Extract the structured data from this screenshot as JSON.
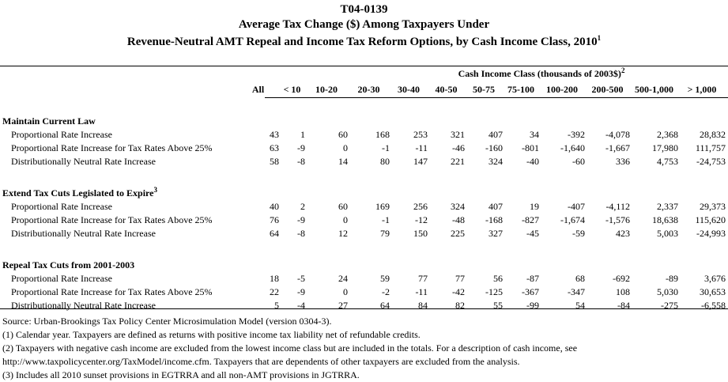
{
  "title": {
    "id": "T04-0139",
    "line2": "Average Tax Change ($) Among Taxpayers Under",
    "line3": "Revenue-Neutral AMT Repeal and Income Tax Reform Options, by Cash Income Class, 2010",
    "line3_sup": "1"
  },
  "header": {
    "group": "Cash Income Class (thousands of 2003$)",
    "group_sup": "2",
    "columns": [
      "All",
      "< 10",
      "10-20",
      "20-30",
      "30-40",
      "40-50",
      "50-75",
      "75-100",
      "100-200",
      "200-500",
      "500-1,000",
      "> 1,000"
    ]
  },
  "sections": [
    {
      "title": "Maintain Current Law",
      "sup": "",
      "rows": [
        {
          "label": "Proportional Rate Increase",
          "values": [
            "43",
            "1",
            "60",
            "168",
            "253",
            "321",
            "407",
            "34",
            "-392",
            "-4,078",
            "2,368",
            "28,832"
          ]
        },
        {
          "label": "Proportional Rate Increase for Tax Rates Above 25%",
          "values": [
            "63",
            "-9",
            "0",
            "-1",
            "-11",
            "-46",
            "-160",
            "-801",
            "-1,640",
            "-1,667",
            "17,980",
            "111,757"
          ]
        },
        {
          "label": "Distributionally Neutral Rate Increase",
          "values": [
            "58",
            "-8",
            "14",
            "80",
            "147",
            "221",
            "324",
            "-40",
            "-60",
            "336",
            "4,753",
            "-24,753"
          ]
        }
      ]
    },
    {
      "title": "Extend Tax Cuts Legislated to Expire",
      "sup": "3",
      "rows": [
        {
          "label": "Proportional Rate Increase",
          "values": [
            "40",
            "2",
            "60",
            "169",
            "256",
            "324",
            "407",
            "19",
            "-407",
            "-4,112",
            "2,337",
            "29,373"
          ]
        },
        {
          "label": "Proportional Rate Increase for Tax Rates Above 25%",
          "values": [
            "76",
            "-9",
            "0",
            "-1",
            "-12",
            "-48",
            "-168",
            "-827",
            "-1,674",
            "-1,576",
            "18,638",
            "115,620"
          ]
        },
        {
          "label": "Distributionally Neutral Rate Increase",
          "values": [
            "64",
            "-8",
            "12",
            "79",
            "150",
            "225",
            "327",
            "-45",
            "-59",
            "423",
            "5,003",
            "-24,993"
          ]
        }
      ]
    },
    {
      "title": "Repeal Tax Cuts from 2001-2003",
      "sup": "",
      "rows": [
        {
          "label": "Proportional Rate Increase",
          "values": [
            "18",
            "-5",
            "24",
            "59",
            "77",
            "77",
            "56",
            "-87",
            "68",
            "-692",
            "-89",
            "3,676"
          ]
        },
        {
          "label": "Proportional Rate Increase for Tax Rates Above 25%",
          "values": [
            "22",
            "-9",
            "0",
            "-2",
            "-11",
            "-42",
            "-125",
            "-367",
            "-347",
            "108",
            "5,030",
            "30,653"
          ]
        },
        {
          "label": "Distributionally Neutral Rate Increase",
          "values": [
            "5",
            "-4",
            "27",
            "64",
            "84",
            "82",
            "55",
            "-99",
            "54",
            "-84",
            "-275",
            "-6,558"
          ]
        }
      ]
    }
  ],
  "notes": [
    "Source: Urban-Brookings Tax Policy Center Microsimulation Model (version 0304-3).",
    "(1) Calendar year.  Taxpayers are defined as returns with positive income tax liability net of refundable credits.",
    "(2) Taxpayers with negative cash income are excluded from the lowest income class but are included in the totals. For a description of cash income, see",
    "http://www.taxpolicycenter.org/TaxModel/income.cfm. Taxpayers that are dependents of other taxpayers are excluded from the analysis.",
    "(3) Includes all 2010 sunset provisions in EGTRRA and all non-AMT provisions in JGTRRA."
  ]
}
